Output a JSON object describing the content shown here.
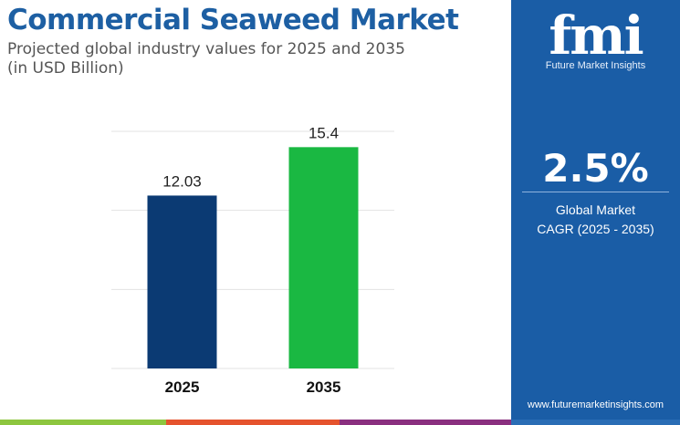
{
  "title": "Commercial Seaweed Market",
  "subtitle": "Projected global industry values for 2025 and 2035",
  "subtitle2": "(in USD Billion)",
  "panel": {
    "logo_mark": "fmi",
    "logo_text": "Future Market Insights",
    "cagr_value": "2.5%",
    "cagr_label1": "Global Market",
    "cagr_label2": "CAGR (2025 - 2035)",
    "website": "www.futuremarketinsights.com",
    "color": "#1a5da6"
  },
  "chart_data": {
    "type": "bar",
    "categories": [
      "2025",
      "2035"
    ],
    "values": [
      12.03,
      15.4
    ],
    "data_labels": [
      "12.03",
      "15.4"
    ],
    "colors": [
      "#0b3a73",
      "#1ab842"
    ],
    "title": "",
    "xlabel": "",
    "ylabel": "",
    "ylim": [
      0,
      16.5
    ],
    "grid": true
  },
  "strip_colors": [
    "#8dc63f",
    "#e5532d",
    "#8a2f7f",
    "#2a6db5"
  ]
}
